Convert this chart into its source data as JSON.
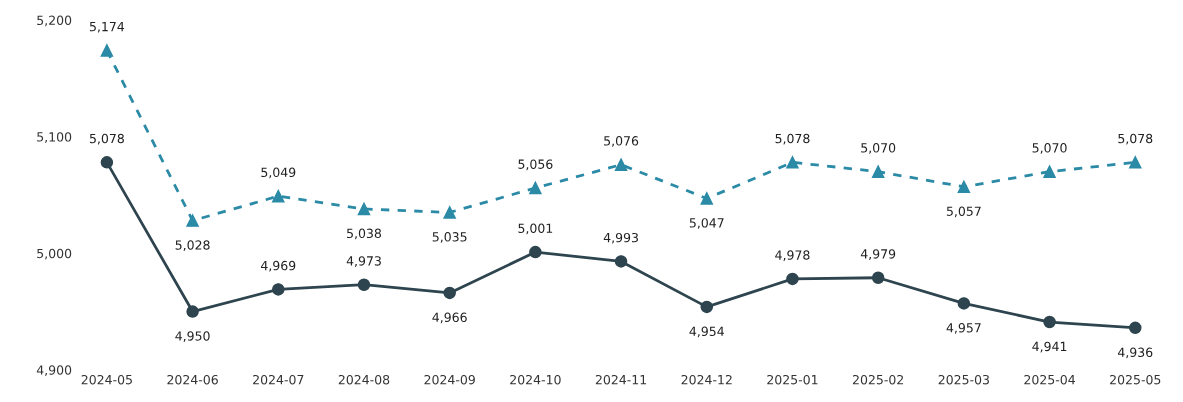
{
  "chart_data": {
    "type": "line",
    "categories": [
      "2024-05",
      "2024-06",
      "2024-07",
      "2024-08",
      "2024-09",
      "2024-10",
      "2024-11",
      "2024-12",
      "2025-01",
      "2025-02",
      "2025-03",
      "2025-04",
      "2025-05"
    ],
    "series": [
      {
        "color": "#2b8aa6",
        "line_style": "dashed",
        "marker": "triangle",
        "values": [
          5174,
          5028,
          5049,
          5038,
          5035,
          5056,
          5076,
          5047,
          5078,
          5070,
          5057,
          5070,
          5078
        ],
        "value_labels": [
          "5,174",
          "5,028",
          "5,049",
          "5,038",
          "5,035",
          "5,056",
          "5,076",
          "5,047",
          "5,078",
          "5,070",
          "5,057",
          "5,070",
          "5,078"
        ]
      },
      {
        "color": "#2e454f",
        "line_style": "solid",
        "marker": "circle",
        "values": [
          5078,
          4950,
          4969,
          4973,
          4966,
          5001,
          4993,
          4954,
          4978,
          4979,
          4957,
          4941,
          4936
        ],
        "value_labels": [
          "5,078",
          "4,950",
          "4,969",
          "4,973",
          "4,966",
          "5,001",
          "4,993",
          "4,954",
          "4,978",
          "4,979",
          "4,957",
          "4,941",
          "4,936"
        ]
      }
    ],
    "ylim": [
      4900,
      5200
    ],
    "yticks": [
      {
        "value": 4900,
        "label": "4,900"
      },
      {
        "value": 5000,
        "label": "5,000"
      },
      {
        "value": 5100,
        "label": "5,100"
      },
      {
        "value": 5200,
        "label": "5,200"
      }
    ],
    "grid": false,
    "legend": false
  }
}
